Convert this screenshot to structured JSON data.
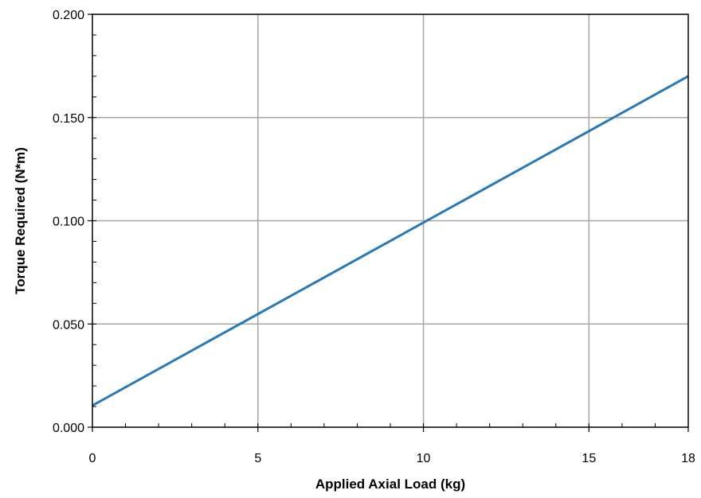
{
  "chart_data": {
    "type": "line",
    "title": "",
    "xlabel": "Applied Axial Load (kg)",
    "ylabel": "Torque Required (N*m)",
    "xlim": [
      0,
      18
    ],
    "ylim": [
      0,
      0.2
    ],
    "x_ticks": [
      0,
      5,
      10,
      15,
      18
    ],
    "x_tick_labels": [
      "0",
      "5",
      "10",
      "15",
      "18"
    ],
    "y_ticks": [
      0,
      0.05,
      0.1,
      0.15,
      0.2
    ],
    "y_tick_labels": [
      "0.000",
      "0.050",
      "0.100",
      "0.150",
      "0.200"
    ],
    "x_minor_step": 1,
    "y_minor_step": 0.01,
    "grid": true,
    "series": [
      {
        "color": "#2979b6",
        "x": [
          0,
          18
        ],
        "y": [
          0.0105,
          0.17
        ]
      }
    ]
  }
}
